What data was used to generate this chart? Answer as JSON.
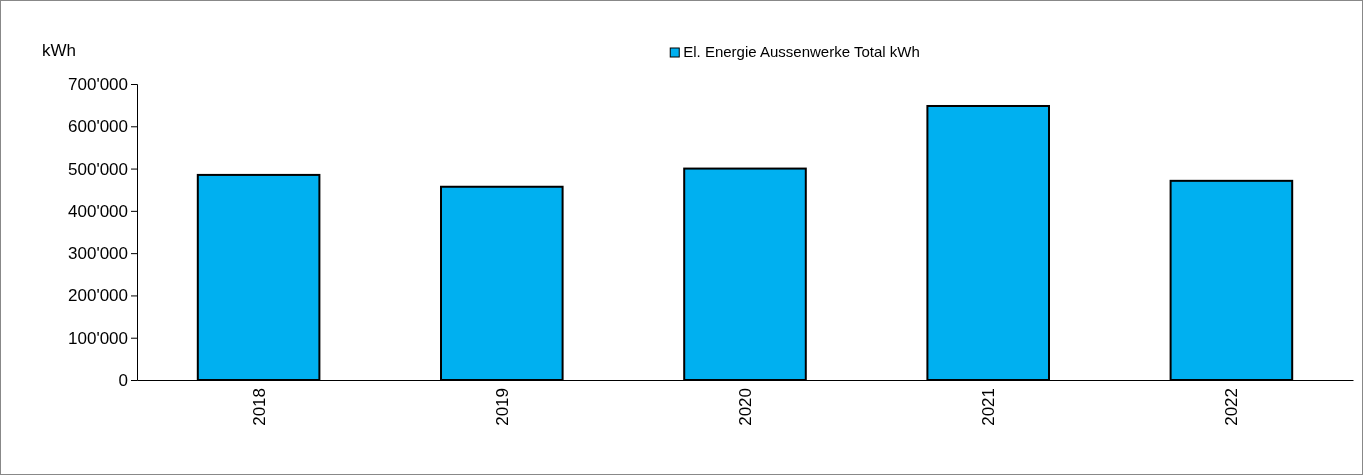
{
  "chart_data": {
    "type": "bar",
    "ylabel": "kWh",
    "categories": [
      "2018",
      "2019",
      "2020",
      "2021",
      "2022"
    ],
    "series": [
      {
        "name": "El. Energie Aussenwerke Total kWh",
        "color": "#00b0f0",
        "values": [
          485000,
          457000,
          500000,
          648000,
          471000
        ]
      }
    ],
    "ylim": [
      0,
      700000
    ],
    "yticks": [
      {
        "value": 0,
        "label": "0"
      },
      {
        "value": 100000,
        "label": "100'000"
      },
      {
        "value": 200000,
        "label": "200'000"
      },
      {
        "value": 300000,
        "label": "300'000"
      },
      {
        "value": 400000,
        "label": "400'000"
      },
      {
        "value": 500000,
        "label": "500'000"
      },
      {
        "value": 600000,
        "label": "600'000"
      },
      {
        "value": 700000,
        "label": "700'000"
      }
    ],
    "legend": "top",
    "grid": false
  }
}
